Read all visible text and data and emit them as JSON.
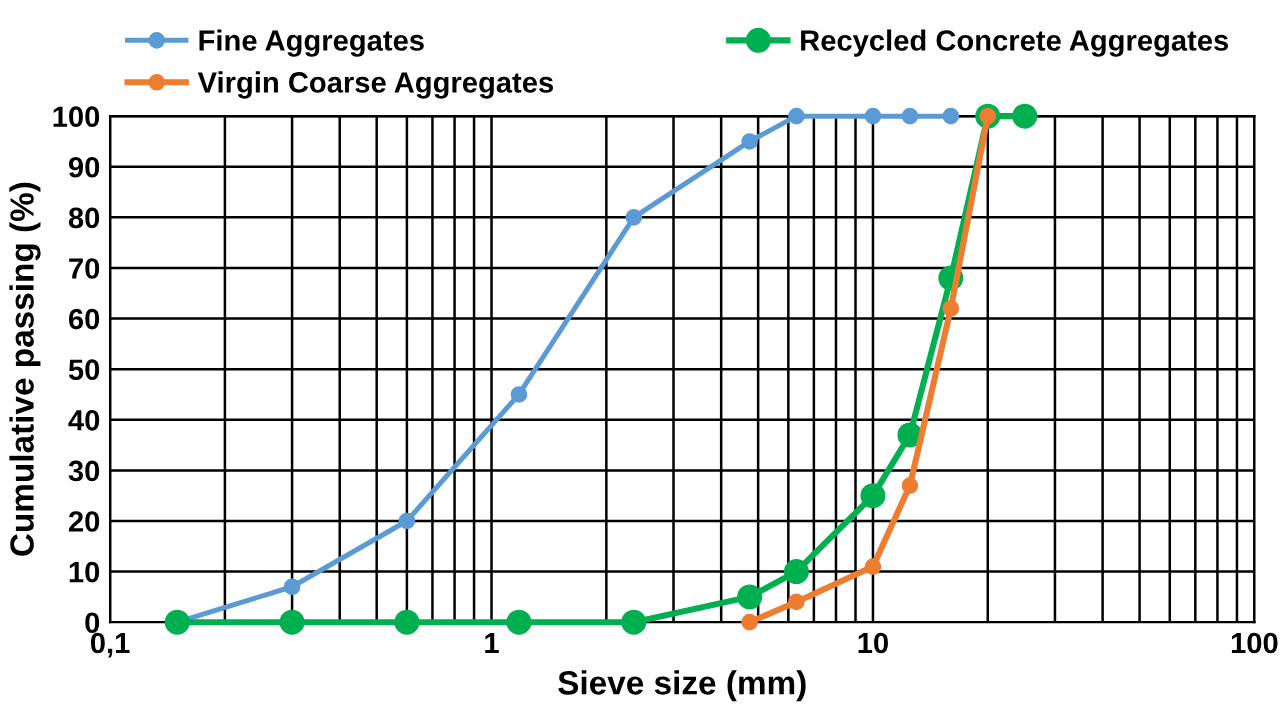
{
  "chart_data": {
    "type": "line",
    "xlabel": "Sieve size (mm)",
    "ylabel": "Cumulative passing (%)",
    "log": "x",
    "xlim": [
      0.1,
      100
    ],
    "xticks": [
      {
        "value": 0.1,
        "label": "0,1"
      },
      1,
      10,
      100
    ],
    "ylim": [
      0,
      100
    ],
    "yticks": [
      0,
      10,
      20,
      30,
      40,
      50,
      60,
      70,
      80,
      90,
      100
    ],
    "grid": true,
    "legend": "top",
    "marker": "circle",
    "line_style": "solid",
    "series": [
      {
        "name": "Fine Aggregates",
        "color": "#5b9bd5",
        "x": [
          0.15,
          0.3,
          0.6,
          1.18,
          2.36,
          4.75,
          6.3,
          10,
          12.5,
          16
        ],
        "values": [
          0,
          7,
          20,
          45,
          80,
          95,
          100,
          100,
          100,
          100
        ]
      },
      {
        "name": "Virgin Coarse Aggregates",
        "color": "#ed7d31",
        "x": [
          4.75,
          6.3,
          10,
          12.5,
          16,
          20
        ],
        "values": [
          0,
          4,
          11,
          27,
          62,
          100
        ]
      },
      {
        "name": "Recycled Concrete Aggregates",
        "color": "#00b050",
        "x": [
          0.15,
          0.3,
          0.6,
          1.18,
          2.36,
          4.75,
          6.3,
          10,
          12.5,
          16,
          20,
          25
        ],
        "values": [
          0,
          0,
          0,
          0,
          0,
          5,
          10,
          25,
          37,
          68,
          100,
          100
        ]
      }
    ]
  }
}
